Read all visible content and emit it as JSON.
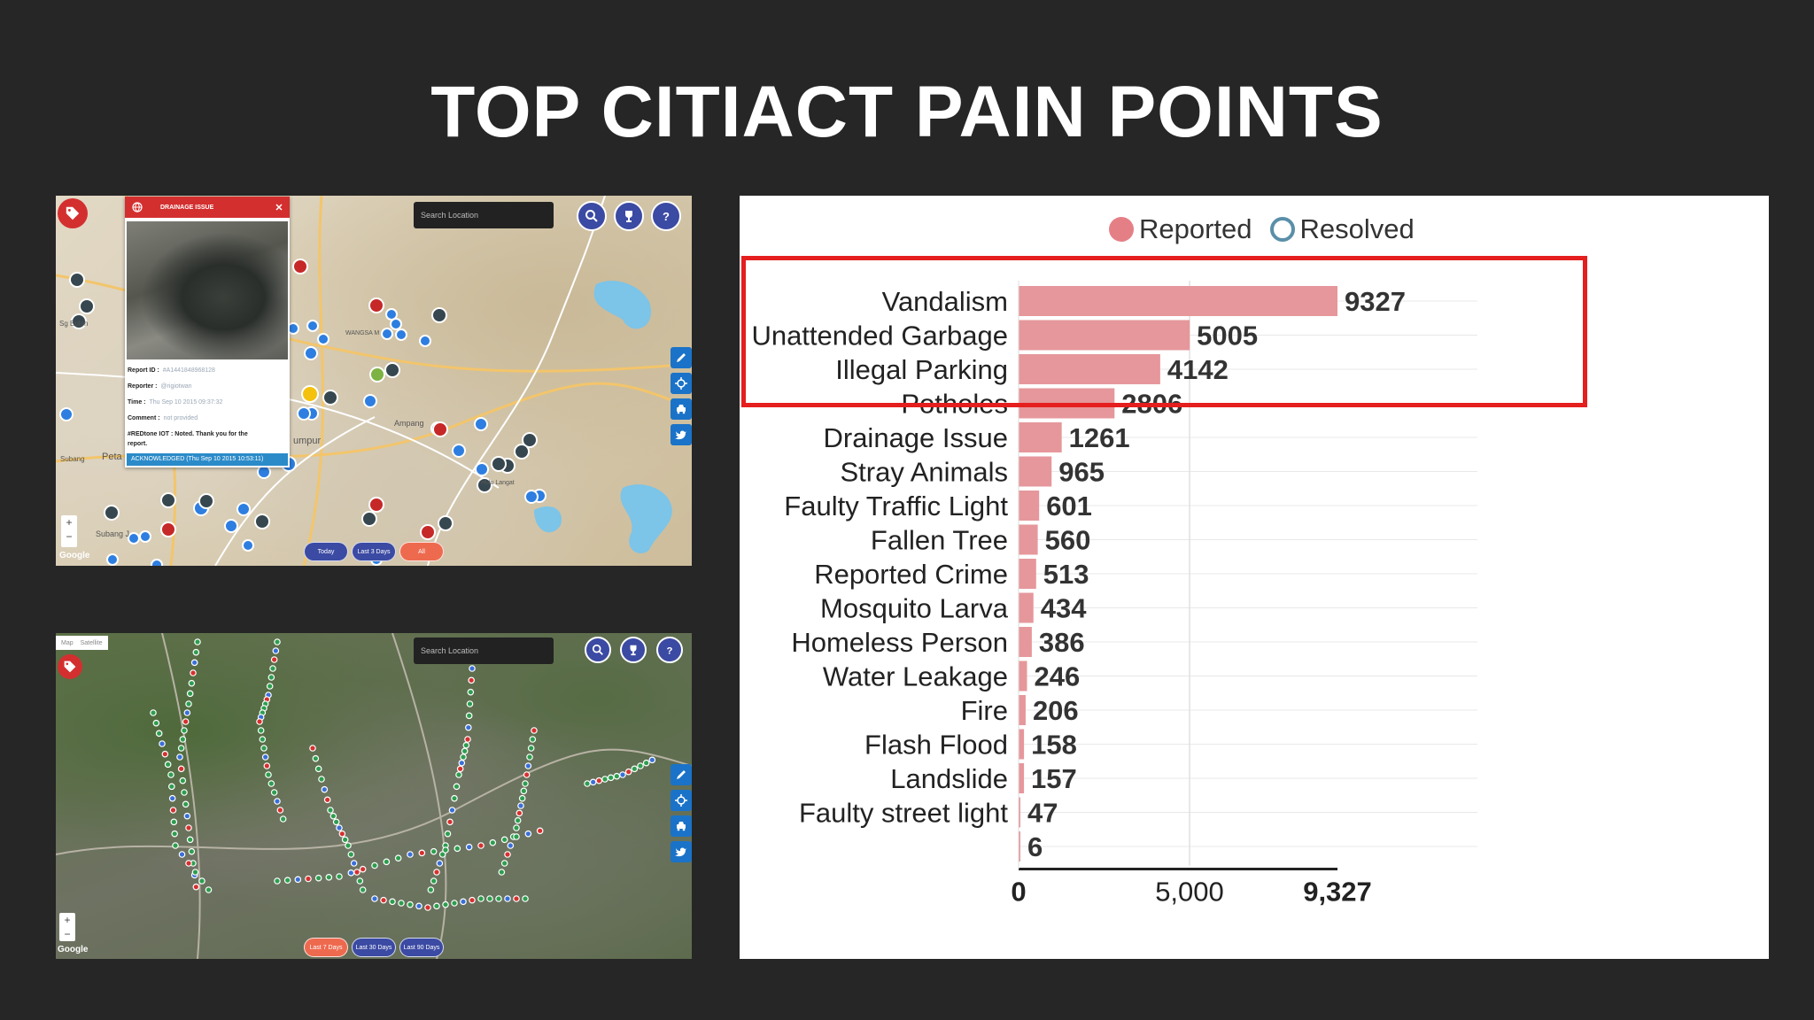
{
  "title": "TOP CITIACT PAIN POINTS",
  "map1": {
    "search_placeholder": "Search Location",
    "popup": {
      "header": "DRAINAGE ISSUE",
      "report_id_label": "Report ID :",
      "report_id_value": "#A1441848968128",
      "reporter_label": "Reporter :",
      "reporter_value": "@rigiotwan",
      "time_label": "Time :",
      "time_value": "Thu Sep 10 2015 09:37:32",
      "comment_label": "Comment :",
      "comment_value": "not provided",
      "reply_line1": "#REDtone IOT : Noted. Thank you for the",
      "reply_line2": "report.",
      "status": "ACKNOWLEDGED (Thu Sep 10 2015 10:53:11)"
    },
    "place_labels": [
      "Kuala Lumpur",
      "Petaling Jaya",
      "Subang",
      "Ampang",
      "Wangsa Maju",
      "Sungai Buloh",
      "Subang Jaya",
      "Hulu Langat"
    ],
    "filters": [
      "Today",
      "Last 3 Days",
      "All"
    ],
    "zoom_in": "+",
    "zoom_out": "−",
    "attribution": "Google"
  },
  "map2": {
    "search_placeholder": "Search Location",
    "map_types": [
      "Map",
      "Satellite"
    ],
    "filters": [
      "Last 7 Days",
      "Last 30 Days",
      "Last 90 Days"
    ],
    "zoom_in": "+",
    "zoom_out": "−",
    "attribution": "Google"
  },
  "icons": {
    "tag": "tag-icon",
    "search": "search-icon",
    "trophy": "trophy-icon",
    "help": "help-icon",
    "edit": "edit-icon",
    "locate": "crosshair-icon",
    "car": "car-icon",
    "twitter": "twitter-icon"
  },
  "chart_data": {
    "type": "bar",
    "orientation": "horizontal",
    "legend": [
      "Reported",
      "Resolved"
    ],
    "legend_colors": {
      "Reported": "#e57f86",
      "Resolved": "#5a8fa8"
    },
    "bar_color": "#e6979b",
    "highlight_color": "#e51e1e",
    "categories": [
      "Vandalism",
      "Unattended Garbage",
      "Illegal Parking",
      "Potholes",
      "Drainage Issue",
      "Stray Animals",
      "Faulty Traffic Light",
      "Fallen Tree",
      "Reported Crime",
      "Mosquito Larva",
      "Homeless Person",
      "Water Leakage",
      "Fire",
      "Flash Flood",
      "Landslide",
      "Faulty street light",
      ""
    ],
    "series": [
      {
        "name": "Reported",
        "values": [
          9327,
          5005,
          4142,
          2806,
          1261,
          965,
          601,
          560,
          513,
          434,
          386,
          246,
          206,
          158,
          157,
          47,
          6
        ]
      }
    ],
    "xlim": [
      0,
      9327
    ],
    "x_ticks": [
      "0",
      "5,000",
      "9,327"
    ],
    "x_tick_values": [
      0,
      5000,
      9327
    ],
    "highlighted_categories": [
      "Vandalism",
      "Unattended Garbage",
      "Illegal Parking",
      "Potholes"
    ]
  }
}
